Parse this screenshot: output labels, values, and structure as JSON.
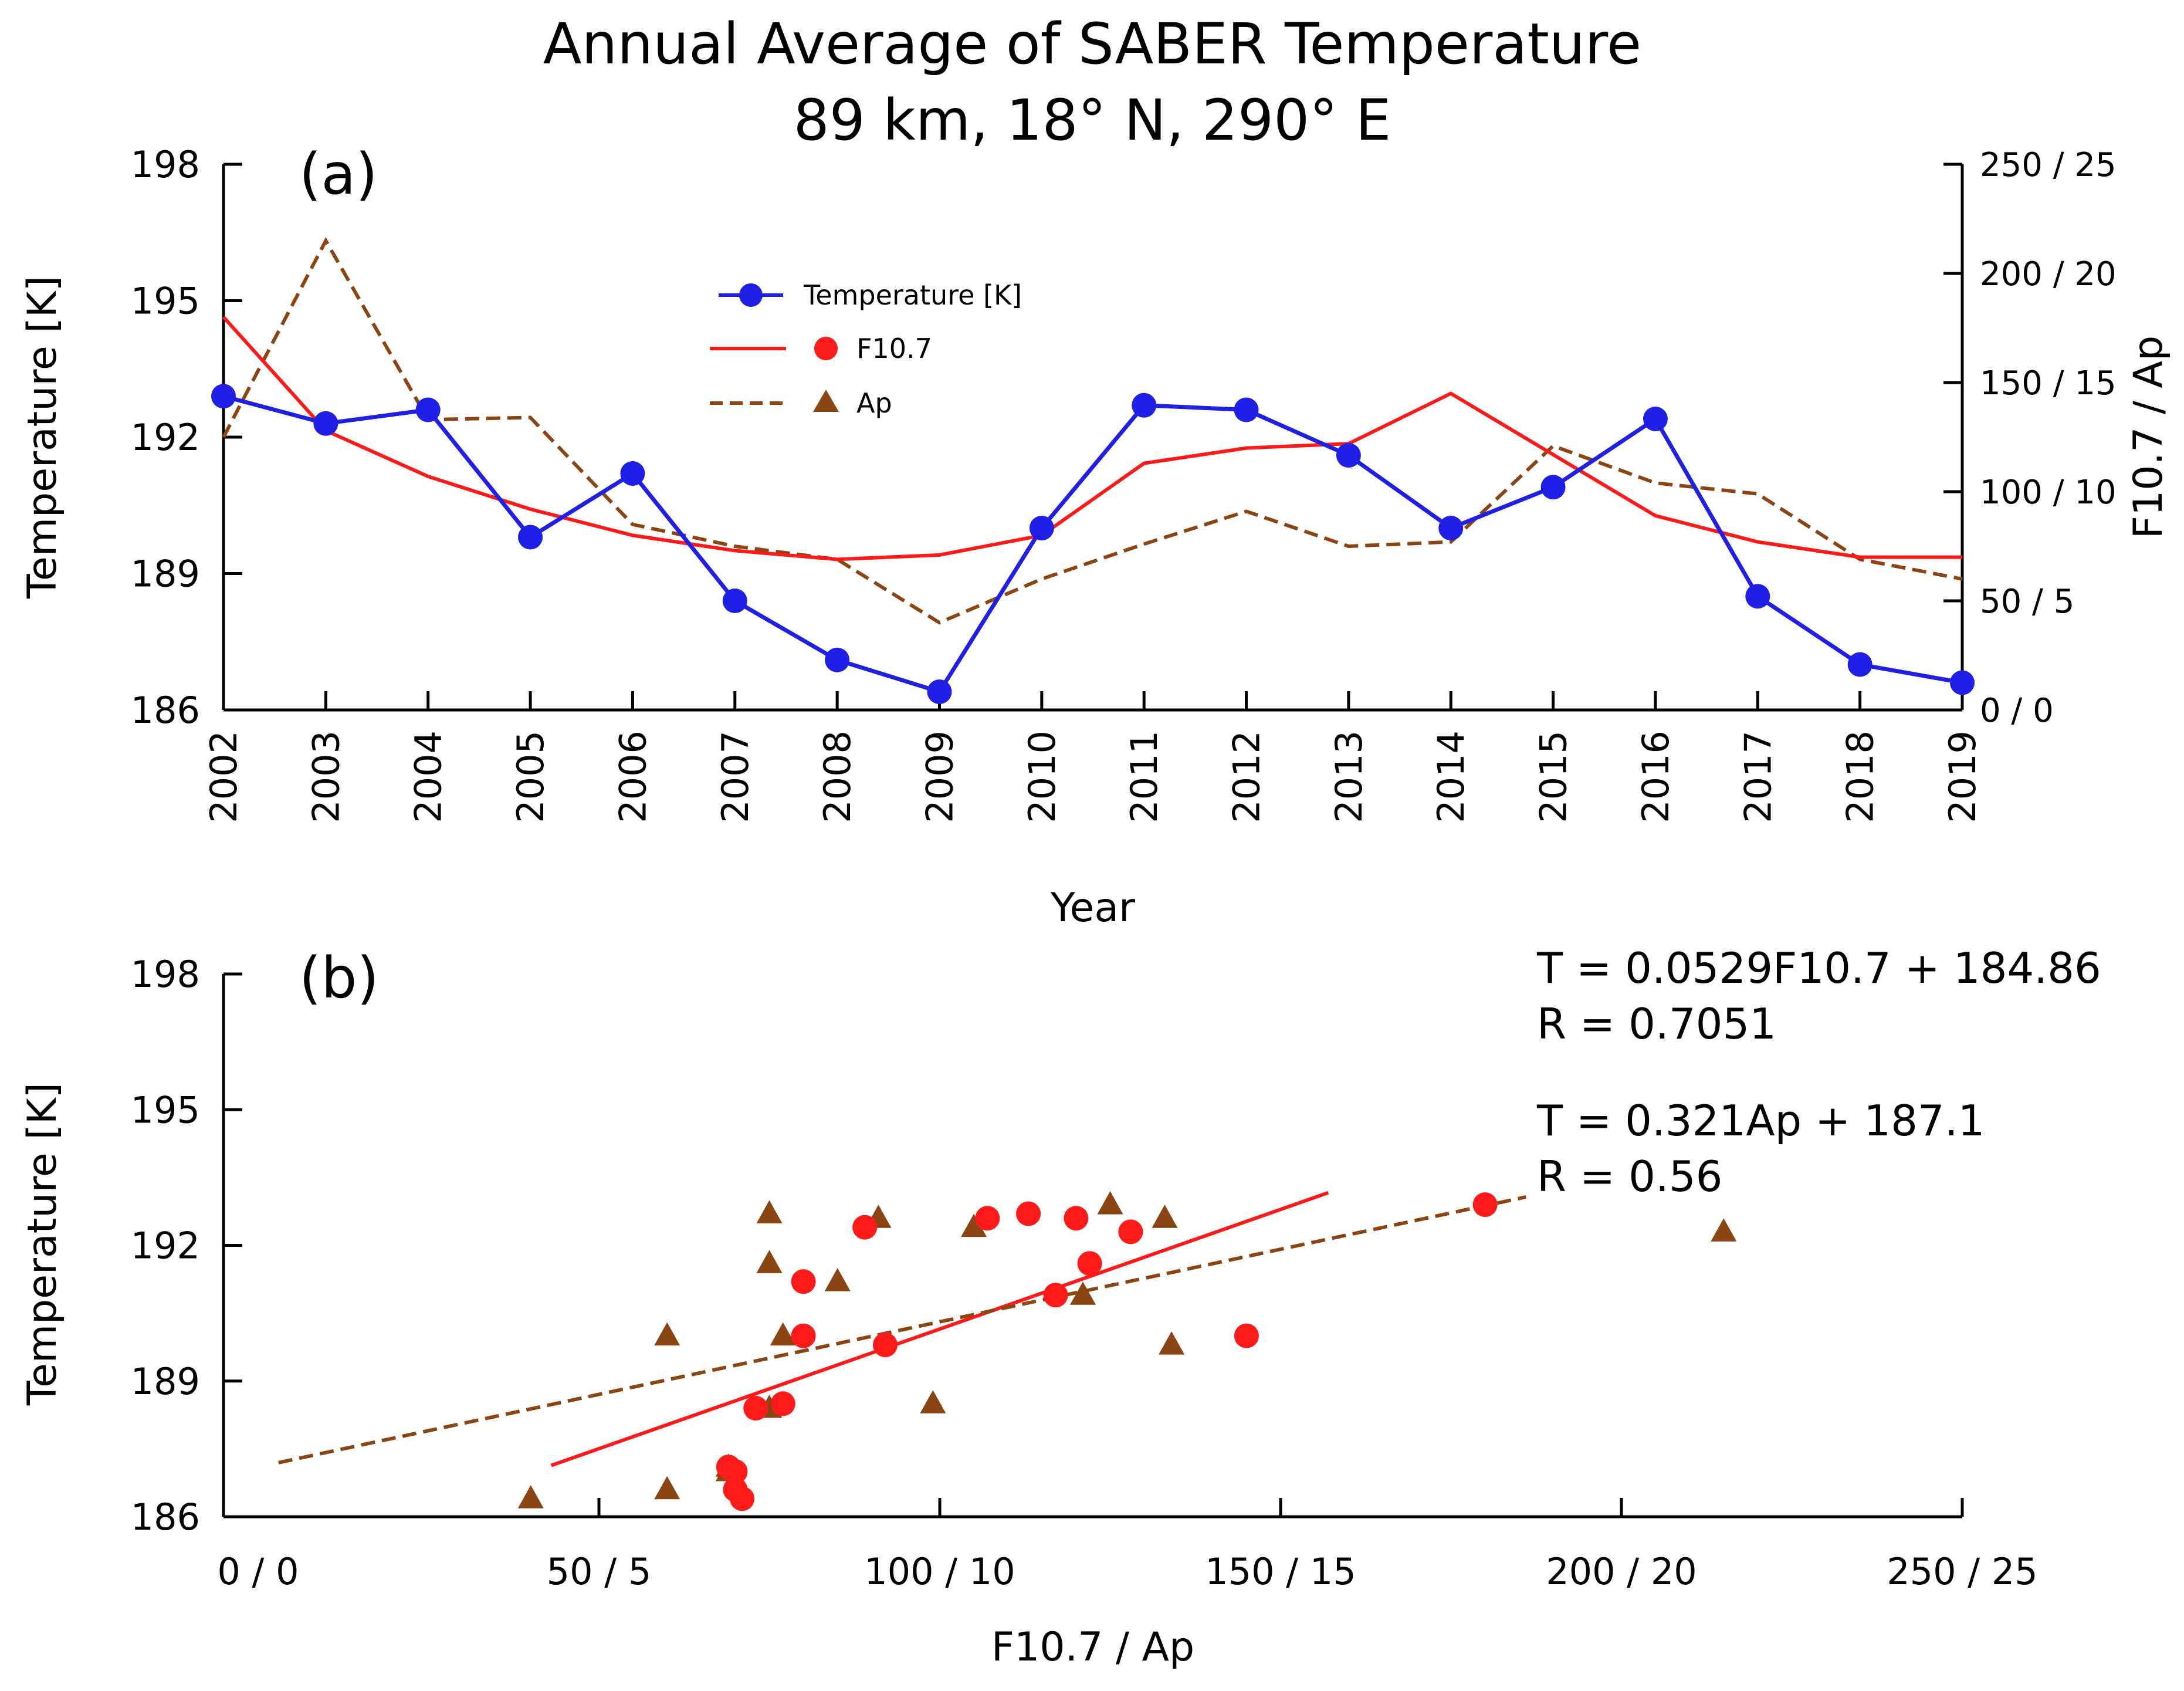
{
  "title": {
    "line1": "Annual Average of SABER Temperature",
    "line2": "89 km, 18° N, 290° E"
  },
  "panel_a": {
    "label": "(a)",
    "ylabel": "Temperature [K]",
    "y2label": "F10.7 / Ap",
    "xlabel": "Year",
    "yticks": [
      "186",
      "189",
      "192",
      "195",
      "198"
    ],
    "y2ticks": [
      "0 / 0",
      "50 / 5",
      "100 / 10",
      "150 / 15",
      "200 / 20",
      "250 / 25"
    ],
    "legend": {
      "temperature": "Temperature [K]",
      "f107": "F10.7",
      "ap": "Ap"
    }
  },
  "panel_b": {
    "label": "(b)",
    "ylabel": "Temperature [K]",
    "xlabel": "F10.7 / Ap",
    "yticks": [
      "186",
      "189",
      "192",
      "195",
      "198"
    ],
    "xticks": [
      "0 / 0",
      "50 / 5",
      "100 / 10",
      "150 / 15",
      "200 / 20",
      "250 / 25"
    ],
    "eq1": "T = 0.0529F10.7 + 184.86",
    "r1": "R = 0.7051",
    "eq2": "T = 0.321Ap + 187.1",
    "r2": "R = 0.56"
  },
  "colors": {
    "temperature": "#1f1fe6",
    "f107": "#ff1a1a",
    "ap": "#8b4513",
    "axis": "#000000"
  },
  "chart_data": [
    {
      "type": "line",
      "title": "Annual Average of SABER Temperature",
      "xlabel": "Year",
      "ylabel": "Temperature [K]",
      "y2label": "F10.7 / Ap",
      "x": [
        2002,
        2003,
        2004,
        2005,
        2006,
        2007,
        2008,
        2009,
        2010,
        2011,
        2012,
        2013,
        2014,
        2015,
        2016,
        2017,
        2018,
        2019
      ],
      "xlim": [
        2002,
        2019
      ],
      "ylim": [
        186,
        198
      ],
      "y2lim_f107": [
        0,
        250
      ],
      "y2lim_ap": [
        0,
        25
      ],
      "series": [
        {
          "name": "Temperature [K]",
          "axis": "left",
          "style": "solid-markers",
          "values": [
            192.9,
            192.3,
            192.6,
            189.8,
            191.2,
            188.4,
            187.1,
            186.4,
            190.0,
            192.7,
            192.6,
            191.6,
            190.0,
            190.9,
            192.4,
            188.5,
            187.0,
            186.6
          ]
        },
        {
          "name": "F10.7",
          "axis": "right",
          "style": "solid",
          "values": [
            180,
            128,
            107,
            92,
            80,
            73,
            69,
            71,
            80,
            113,
            120,
            122,
            145,
            117,
            89,
            77,
            70,
            70
          ]
        },
        {
          "name": "Ap",
          "axis": "right",
          "style": "dashed",
          "values": [
            12.5,
            21.5,
            13.3,
            13.4,
            8.5,
            7.5,
            6.9,
            4.0,
            6.0,
            7.6,
            9.1,
            7.5,
            7.7,
            12.1,
            10.4,
            9.9,
            6.9,
            6.0
          ]
        }
      ]
    },
    {
      "type": "scatter",
      "title": "",
      "xlabel": "F10.7 / Ap",
      "ylabel": "Temperature [K]",
      "xlim": [
        0,
        250
      ],
      "ylim": [
        186,
        198
      ],
      "series": [
        {
          "name": "F10.7",
          "marker": "circle",
          "x": [
            180,
            128,
            107,
            92,
            80,
            73,
            69,
            71,
            80,
            113,
            120,
            122,
            145,
            117,
            89,
            77,
            70,
            70
          ],
          "y": [
            192.9,
            192.3,
            192.6,
            189.8,
            191.2,
            188.4,
            187.1,
            186.4,
            190.0,
            192.7,
            192.6,
            191.6,
            190.0,
            190.9,
            192.4,
            188.5,
            187.0,
            186.6
          ]
        },
        {
          "name": "Ap",
          "marker": "triangle",
          "x": [
            125,
            215,
            133,
            134,
            85,
            75,
            69,
            40,
            60,
            75,
            91,
            75,
            77,
            121,
            105,
            99,
            69,
            60
          ],
          "y": [
            192.9,
            192.3,
            192.6,
            189.8,
            191.2,
            188.4,
            187.1,
            186.4,
            190.0,
            192.7,
            192.6,
            191.6,
            190.0,
            190.9,
            192.4,
            188.5,
            187.0,
            186.6
          ]
        }
      ],
      "fits": [
        {
          "name": "F10.7 fit",
          "slope": 0.0529,
          "intercept": 184.86,
          "x_range": [
            43,
            157
          ]
        },
        {
          "name": "Ap fit",
          "slope": 0.0321,
          "intercept": 187.1,
          "x_range": [
            3,
            186
          ]
        }
      ]
    }
  ]
}
